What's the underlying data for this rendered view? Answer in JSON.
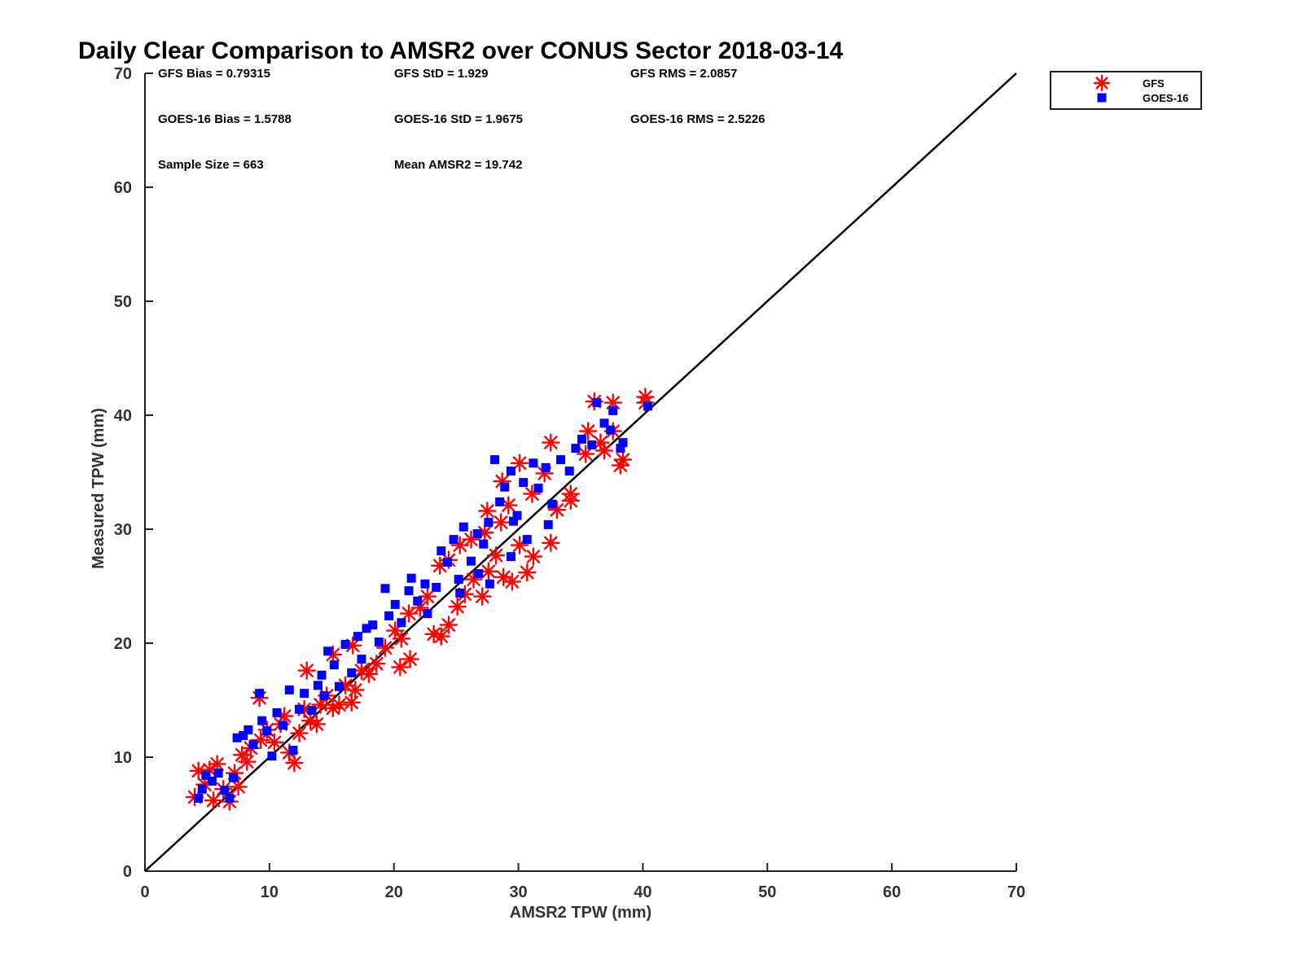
{
  "chart_data": {
    "type": "scatter",
    "title": "Daily Clear Comparison to AMSR2 over CONUS Sector 2018-03-14",
    "xlabel": "AMSR2 TPW (mm)",
    "ylabel": "Measured TPW (mm)",
    "xlim": [
      0,
      70
    ],
    "ylim": [
      0,
      70
    ],
    "xticks": [
      "0",
      "10",
      "20",
      "30",
      "40",
      "50",
      "60",
      "70"
    ],
    "yticks": [
      "0",
      "10",
      "20",
      "30",
      "40",
      "50",
      "60",
      "70"
    ],
    "reference_line": "1:1 line",
    "legend_position": "top-right, outside plot",
    "grid": false,
    "stats": [
      [
        "GFS Bias = 0.79315",
        "GFS StD = 1.929",
        "GFS RMS = 2.0857"
      ],
      [
        "GOES-16 Bias = 1.5788",
        "GOES-16 StD = 1.9675",
        "GOES-16 RMS = 2.5226"
      ],
      [
        "Sample Size = 663",
        "Mean AMSR2 = 19.742"
      ]
    ],
    "series": [
      {
        "name": "GFS",
        "marker": "asterisk",
        "color": "#ff0000",
        "points": [
          [
            4,
            6.5
          ],
          [
            4.3,
            8.8
          ],
          [
            4.8,
            7.6
          ],
          [
            5.2,
            8.9
          ],
          [
            5.8,
            9.4
          ],
          [
            5.5,
            6.2
          ],
          [
            6.3,
            7.2
          ],
          [
            6.8,
            6.1
          ],
          [
            7.5,
            7.4
          ],
          [
            7.2,
            8.6
          ],
          [
            7.8,
            10.2
          ],
          [
            8.5,
            10.8
          ],
          [
            8.2,
            9.6
          ],
          [
            9.3,
            11.5
          ],
          [
            9.2,
            15.2
          ],
          [
            9.8,
            12.4
          ],
          [
            10.4,
            11.3
          ],
          [
            10.9,
            12.9
          ],
          [
            11.6,
            10.4
          ],
          [
            12,
            9.5
          ],
          [
            11.2,
            13.6
          ],
          [
            12.4,
            12.1
          ],
          [
            12.8,
            14.2
          ],
          [
            13.3,
            13.2
          ],
          [
            13.8,
            12.9
          ],
          [
            14.1,
            14.6
          ],
          [
            14.6,
            15.4
          ],
          [
            15.1,
            14.3
          ],
          [
            15.6,
            14.6
          ],
          [
            16.1,
            16.3
          ],
          [
            16.6,
            14.8
          ],
          [
            16.9,
            15.9
          ],
          [
            17.4,
            17.6
          ],
          [
            18,
            17.3
          ],
          [
            18.6,
            18.2
          ],
          [
            13,
            17.6
          ],
          [
            15.1,
            19
          ],
          [
            16.7,
            19.8
          ],
          [
            19.3,
            19.6
          ],
          [
            20.1,
            21.1
          ],
          [
            20.6,
            20.4
          ],
          [
            21.2,
            22.6
          ],
          [
            20.5,
            17.9
          ],
          [
            21.3,
            18.6
          ],
          [
            22.1,
            23.1
          ],
          [
            22.7,
            24.1
          ],
          [
            23.2,
            20.8
          ],
          [
            23.8,
            20.6
          ],
          [
            24.4,
            21.6
          ],
          [
            25.1,
            23.2
          ],
          [
            25.7,
            24.3
          ],
          [
            26.4,
            25.6
          ],
          [
            27.1,
            24.1
          ],
          [
            27.6,
            26.3
          ],
          [
            28.2,
            27.7
          ],
          [
            28.8,
            25.8
          ],
          [
            29.5,
            25.4
          ],
          [
            30.1,
            28.6
          ],
          [
            30.7,
            26.2
          ],
          [
            31.2,
            27.6
          ],
          [
            23.7,
            26.8
          ],
          [
            24.4,
            27.3
          ],
          [
            25.3,
            28.6
          ],
          [
            26.2,
            29.1
          ],
          [
            27.3,
            29.7
          ],
          [
            27.5,
            31.6
          ],
          [
            28.6,
            30.6
          ],
          [
            29.2,
            32.1
          ],
          [
            28.7,
            34.2
          ],
          [
            30.1,
            35.8
          ],
          [
            31.1,
            33.1
          ],
          [
            32.1,
            34.9
          ],
          [
            32.6,
            37.6
          ],
          [
            33.1,
            31.7
          ],
          [
            34.2,
            33.1
          ],
          [
            34.2,
            32.5
          ],
          [
            32.6,
            28.8
          ],
          [
            35.4,
            36.6
          ],
          [
            36.1,
            41.2
          ],
          [
            36.9,
            36.9
          ],
          [
            37.6,
            41.1
          ],
          [
            37.6,
            38.6
          ],
          [
            38.2,
            35.6
          ],
          [
            38.4,
            36.1
          ],
          [
            40.2,
            41.6
          ],
          [
            40.2,
            41.1
          ],
          [
            35.6,
            38.6
          ],
          [
            36.6,
            37.6
          ]
        ]
      },
      {
        "name": "GOES-16",
        "marker": "square",
        "color": "#0000ff",
        "points": [
          [
            4.3,
            6.4
          ],
          [
            4.6,
            7.2
          ],
          [
            4.9,
            8.4
          ],
          [
            5.4,
            7.9
          ],
          [
            5.9,
            8.6
          ],
          [
            6.4,
            7.1
          ],
          [
            6.8,
            6.4
          ],
          [
            7.1,
            8.2
          ],
          [
            7.4,
            11.7
          ],
          [
            7.9,
            11.9
          ],
          [
            8.3,
            12.4
          ],
          [
            8.7,
            11.1
          ],
          [
            9.2,
            15.6
          ],
          [
            9.4,
            13.2
          ],
          [
            9.8,
            12.3
          ],
          [
            10.2,
            10.1
          ],
          [
            10.6,
            13.9
          ],
          [
            11.1,
            12.8
          ],
          [
            11.6,
            15.9
          ],
          [
            11.9,
            10.6
          ],
          [
            12.4,
            14.2
          ],
          [
            12.8,
            15.6
          ],
          [
            13.4,
            14.1
          ],
          [
            13.9,
            16.3
          ],
          [
            14.2,
            17.2
          ],
          [
            14.4,
            15.4
          ],
          [
            14.7,
            19.3
          ],
          [
            15.2,
            18.1
          ],
          [
            15.6,
            16.2
          ],
          [
            16.1,
            19.9
          ],
          [
            16.6,
            17.4
          ],
          [
            17.1,
            20.6
          ],
          [
            17.4,
            18.6
          ],
          [
            17.8,
            21.3
          ],
          [
            18.3,
            21.6
          ],
          [
            18.8,
            20.1
          ],
          [
            19.3,
            24.8
          ],
          [
            19.6,
            22.4
          ],
          [
            20.1,
            23.4
          ],
          [
            20.6,
            21.8
          ],
          [
            21.2,
            24.6
          ],
          [
            21.4,
            25.7
          ],
          [
            21.9,
            23.7
          ],
          [
            22.5,
            25.2
          ],
          [
            22.7,
            22.6
          ],
          [
            23.4,
            24.9
          ],
          [
            23.8,
            28.1
          ],
          [
            24.3,
            27.1
          ],
          [
            24.8,
            29.1
          ],
          [
            25.2,
            25.6
          ],
          [
            25.6,
            30.2
          ],
          [
            26.2,
            27.2
          ],
          [
            26.7,
            29.6
          ],
          [
            27.2,
            28.7
          ],
          [
            27.6,
            30.6
          ],
          [
            28.1,
            36.1
          ],
          [
            28.5,
            32.4
          ],
          [
            28.9,
            33.7
          ],
          [
            29.4,
            35.1
          ],
          [
            29.6,
            30.7
          ],
          [
            29.9,
            31.2
          ],
          [
            30.4,
            34.1
          ],
          [
            30.7,
            29.1
          ],
          [
            31.2,
            35.8
          ],
          [
            31.6,
            33.6
          ],
          [
            32.2,
            35.4
          ],
          [
            32.7,
            32.2
          ],
          [
            33.4,
            36.1
          ],
          [
            34.1,
            35.1
          ],
          [
            34.6,
            37.1
          ],
          [
            35.1,
            37.9
          ],
          [
            35.9,
            37.4
          ],
          [
            36.3,
            41.1
          ],
          [
            36.9,
            39.3
          ],
          [
            37.4,
            38.7
          ],
          [
            37.6,
            40.4
          ],
          [
            38.2,
            37.1
          ],
          [
            38.4,
            37.6
          ],
          [
            40.4,
            40.8
          ],
          [
            32.4,
            30.4
          ],
          [
            26.8,
            26.1
          ],
          [
            29.4,
            27.6
          ],
          [
            27.7,
            25.2
          ],
          [
            25.3,
            24.4
          ]
        ]
      }
    ]
  }
}
